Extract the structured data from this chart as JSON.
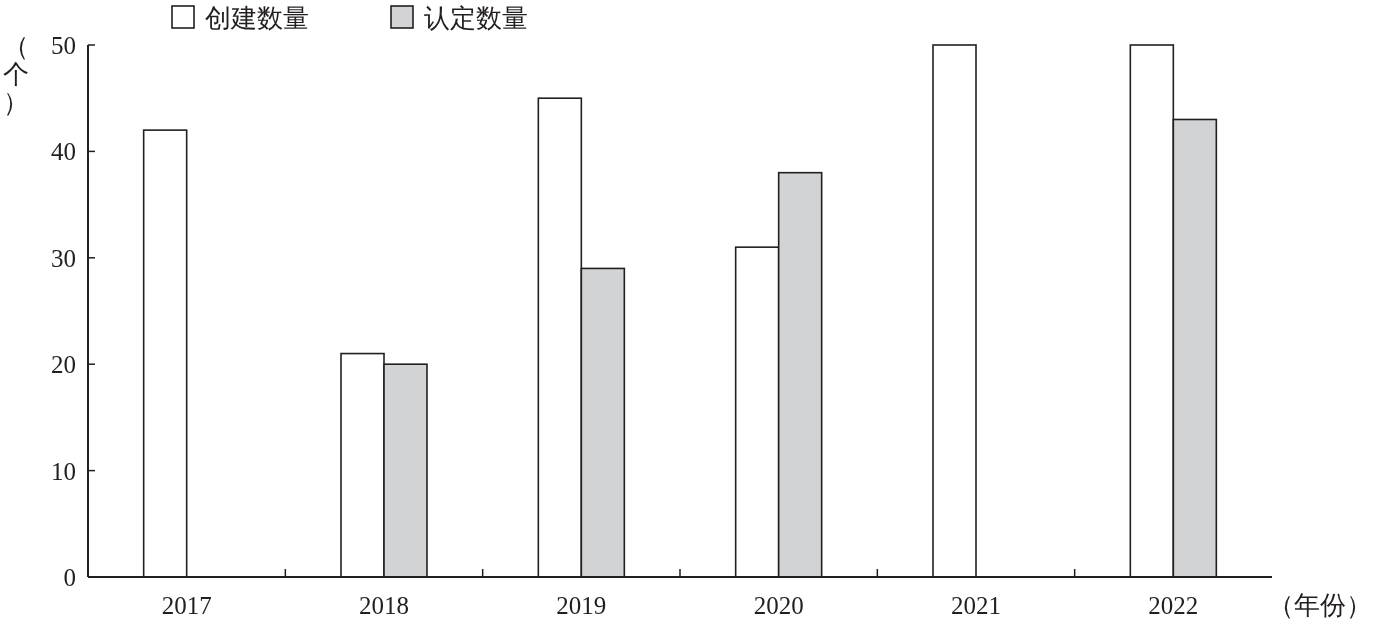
{
  "chart_data": {
    "type": "bar",
    "categories": [
      "2017",
      "2018",
      "2019",
      "2020",
      "2021",
      "2022"
    ],
    "series": [
      {
        "name": "创建数量",
        "color": "#ffffff",
        "values": [
          42,
          21,
          45,
          31,
          50,
          50
        ]
      },
      {
        "name": "认定数量",
        "color": "#d2d3d5",
        "values": [
          null,
          20,
          29,
          38,
          null,
          43
        ]
      }
    ],
    "ylim": [
      0,
      50
    ],
    "yticks": [
      0,
      10,
      20,
      30,
      40,
      50
    ],
    "ylabel": "（个）",
    "xlabel": "（年份）",
    "legend": "top",
    "grid": false
  }
}
